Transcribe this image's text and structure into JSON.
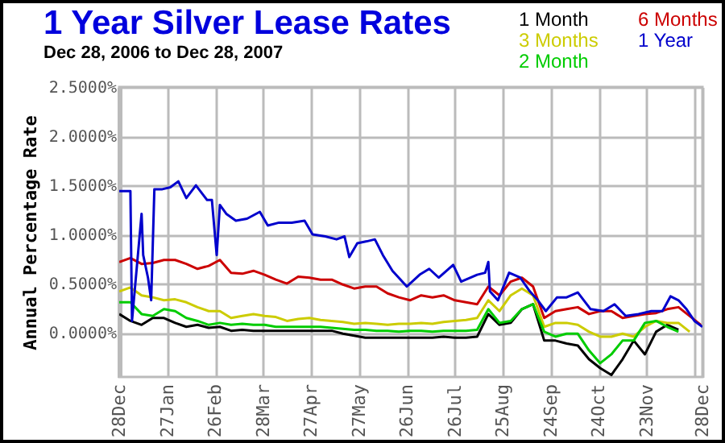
{
  "chart_data": {
    "type": "line",
    "title": "1 Year Silver Lease Rates",
    "subtitle": "Dec 28, 2006 to Dec 28, 2007",
    "ylabel": "Annual Percentage Rate",
    "x": [
      "2006-12-28",
      "2007-01-04",
      "2007-01-11",
      "2007-01-18",
      "2007-01-25",
      "2007-02-01",
      "2007-02-08",
      "2007-02-15",
      "2007-02-22",
      "2007-03-01",
      "2007-03-08",
      "2007-03-15",
      "2007-03-22",
      "2007-03-29",
      "2007-04-05",
      "2007-04-12",
      "2007-04-19",
      "2007-04-26",
      "2007-05-03",
      "2007-05-10",
      "2007-05-17",
      "2007-05-24",
      "2007-05-31",
      "2007-06-07",
      "2007-06-14",
      "2007-06-21",
      "2007-06-28",
      "2007-07-05",
      "2007-07-12",
      "2007-07-19",
      "2007-07-26",
      "2007-08-02",
      "2007-08-09",
      "2007-08-16",
      "2007-08-23",
      "2007-08-30",
      "2007-09-06",
      "2007-09-13",
      "2007-09-20",
      "2007-09-27",
      "2007-10-04",
      "2007-10-11",
      "2007-10-18",
      "2007-10-25",
      "2007-11-01",
      "2007-11-08",
      "2007-11-15",
      "2007-11-22",
      "2007-11-29",
      "2007-12-06",
      "2007-12-13",
      "2007-12-20",
      "2007-12-27"
    ],
    "series": [
      {
        "name": "1 Month",
        "color": "#000000",
        "values": [
          0.19,
          0.12,
          0.08,
          0.15,
          0.15,
          0.1,
          0.06,
          0.08,
          0.05,
          0.06,
          0.02,
          0.03,
          0.02,
          0.02,
          0.02,
          0.02,
          0.02,
          0.02,
          0.02,
          0.02,
          -0.01,
          -0.03,
          -0.05,
          -0.05,
          -0.05,
          -0.05,
          -0.05,
          -0.05,
          -0.05,
          -0.04,
          -0.05,
          -0.05,
          -0.04,
          0.19,
          0.08,
          0.1,
          0.24,
          0.29,
          -0.08,
          -0.08,
          -0.11,
          -0.13,
          -0.27,
          -0.36,
          -0.43,
          -0.27,
          -0.08,
          -0.22,
          0.01,
          0.08,
          0.03,
          null,
          null
        ]
      },
      {
        "name": "3 Months",
        "color": "#cccc00",
        "values": [
          0.42,
          0.46,
          0.38,
          0.36,
          0.33,
          0.34,
          0.31,
          0.26,
          0.22,
          0.22,
          0.15,
          0.17,
          0.19,
          0.17,
          0.16,
          0.12,
          0.14,
          0.15,
          0.13,
          0.12,
          0.11,
          0.09,
          0.1,
          0.09,
          0.08,
          0.09,
          0.09,
          0.1,
          0.09,
          0.11,
          0.12,
          0.13,
          0.15,
          0.33,
          0.22,
          0.38,
          0.45,
          0.38,
          0.06,
          0.1,
          0.1,
          0.08,
          0.01,
          -0.04,
          -0.04,
          -0.01,
          -0.04,
          0.06,
          0.12,
          0.1,
          0.1,
          0.01,
          null
        ]
      },
      {
        "name": "2 Month",
        "color": "#00cc00",
        "values": [
          0.31,
          0.31,
          0.19,
          0.17,
          0.24,
          0.22,
          0.15,
          0.12,
          0.08,
          0.1,
          0.08,
          0.09,
          0.08,
          0.08,
          0.06,
          0.06,
          0.06,
          0.06,
          0.06,
          0.05,
          0.04,
          0.03,
          0.03,
          0.02,
          0.02,
          0.01,
          0.02,
          0.02,
          0.01,
          0.02,
          0.02,
          0.02,
          0.03,
          0.24,
          0.1,
          0.12,
          0.24,
          0.29,
          0.01,
          -0.04,
          -0.01,
          -0.01,
          -0.18,
          -0.31,
          -0.22,
          -0.08,
          -0.08,
          0.1,
          0.12,
          0.06,
          0.01,
          null,
          null
        ]
      },
      {
        "name": "6 Months",
        "color": "#cc0000",
        "values": [
          0.72,
          0.76,
          0.7,
          0.71,
          0.74,
          0.74,
          0.7,
          0.65,
          0.68,
          0.74,
          0.61,
          0.6,
          0.63,
          0.59,
          0.54,
          0.5,
          0.57,
          0.56,
          0.54,
          0.54,
          0.49,
          0.45,
          0.47,
          0.47,
          0.4,
          0.36,
          0.33,
          0.38,
          0.36,
          0.38,
          0.33,
          0.31,
          0.29,
          0.47,
          0.38,
          0.52,
          0.56,
          0.47,
          0.15,
          0.22,
          0.24,
          0.26,
          0.19,
          0.22,
          0.22,
          0.15,
          0.17,
          0.19,
          0.2,
          0.24,
          0.26,
          0.17,
          0.08
        ]
      },
      {
        "name": "1 Year",
        "color": "#0000cc",
        "x": [
          "2006-12-28",
          "2007-01-04",
          "2007-01-05",
          "2007-01-11",
          "2007-01-12",
          "2007-01-15",
          "2007-01-17",
          "2007-01-19",
          "2007-01-24",
          "2007-01-29",
          "2007-02-03",
          "2007-02-08",
          "2007-02-14",
          "2007-02-21",
          "2007-02-24",
          "2007-02-27",
          "2007-03-01",
          "2007-03-05",
          "2007-03-11",
          "2007-03-18",
          "2007-03-26",
          "2007-03-31",
          "2007-04-07",
          "2007-04-15",
          "2007-04-23",
          "2007-04-28",
          "2007-05-06",
          "2007-05-13",
          "2007-05-18",
          "2007-05-21",
          "2007-05-26",
          "2007-06-01",
          "2007-06-06",
          "2007-06-11",
          "2007-06-17",
          "2007-06-26",
          "2007-07-04",
          "2007-07-10",
          "2007-07-16",
          "2007-07-25",
          "2007-07-30",
          "2007-08-09",
          "2007-08-14",
          "2007-08-16",
          "2007-08-17",
          "2007-08-22",
          "2007-08-29",
          "2007-09-05",
          "2007-09-11",
          "2007-09-16",
          "2007-09-21",
          "2007-09-28",
          "2007-10-04",
          "2007-10-11",
          "2007-10-19",
          "2007-10-27",
          "2007-11-03",
          "2007-11-10",
          "2007-11-18",
          "2007-11-26",
          "2007-12-03",
          "2007-12-08",
          "2007-12-13",
          "2007-12-18",
          "2007-12-23",
          "2007-12-28"
        ],
        "values": [
          1.44,
          1.44,
          0.12,
          1.21,
          0.79,
          0.56,
          0.33,
          1.46,
          1.46,
          1.48,
          1.54,
          1.37,
          1.5,
          1.35,
          1.35,
          0.79,
          1.3,
          1.21,
          1.14,
          1.16,
          1.23,
          1.09,
          1.12,
          1.12,
          1.14,
          1.0,
          0.98,
          0.95,
          0.98,
          0.77,
          0.91,
          0.93,
          0.95,
          0.79,
          0.63,
          0.47,
          0.59,
          0.65,
          0.56,
          0.69,
          0.52,
          0.59,
          0.61,
          0.72,
          0.42,
          0.33,
          0.61,
          0.56,
          0.42,
          0.33,
          0.22,
          0.36,
          0.36,
          0.41,
          0.24,
          0.22,
          0.29,
          0.17,
          0.19,
          0.22,
          0.22,
          0.37,
          0.33,
          0.24,
          0.12,
          0.06
        ]
      }
    ],
    "xlim": [
      "2006-12-28",
      "2007-12-28"
    ],
    "xticks": [
      {
        "value": "2006-12-28",
        "label": "28Dec"
      },
      {
        "value": "2007-01-27",
        "label": "27Jan"
      },
      {
        "value": "2007-02-26",
        "label": "26Feb"
      },
      {
        "value": "2007-03-28",
        "label": "28Mar"
      },
      {
        "value": "2007-04-27",
        "label": "27Apr"
      },
      {
        "value": "2007-05-27",
        "label": "27May"
      },
      {
        "value": "2007-06-26",
        "label": "26Jun"
      },
      {
        "value": "2007-07-26",
        "label": "26Jul"
      },
      {
        "value": "2007-08-25",
        "label": "25Aug"
      },
      {
        "value": "2007-09-24",
        "label": "24Sep"
      },
      {
        "value": "2007-10-24",
        "label": "24Oct"
      },
      {
        "value": "2007-11-23",
        "label": "23Nov"
      },
      {
        "value": "2007-12-23",
        "label": null
      },
      {
        "value": "2007-12-28",
        "label": "28Dec"
      }
    ],
    "ylim": [
      -0.45,
      2.5
    ],
    "yticks": [
      {
        "value": 0,
        "label": "0.0000%"
      },
      {
        "value": 0.5,
        "label": "0.5000%"
      },
      {
        "value": 1,
        "label": "1.0000%"
      },
      {
        "value": 1.5,
        "label": "1.5000%"
      },
      {
        "value": 2,
        "label": "2.0000%"
      },
      {
        "value": 2.5,
        "label": "2.5000%"
      }
    ],
    "grid": true,
    "legend": "top right",
    "marker": "none",
    "line_style": "solid"
  }
}
